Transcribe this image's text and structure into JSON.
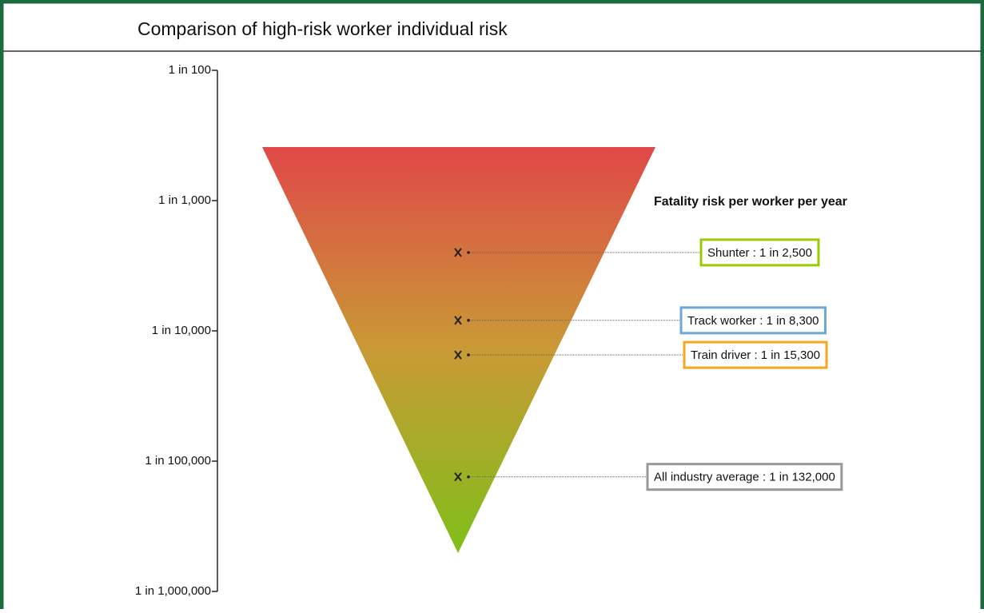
{
  "chart_data": {
    "type": "scatter",
    "title": "Comparison of high-risk worker individual risk",
    "annotation": "Fatality risk per worker per year",
    "log_y": true,
    "ylim": [
      1000000,
      100
    ],
    "yticks": [
      {
        "value": 100,
        "label": "1 in 100"
      },
      {
        "value": 1000,
        "label": "1 in 1,000"
      },
      {
        "value": 10000,
        "label": "1 in 10,000"
      },
      {
        "value": 100000,
        "label": "1 in 100,000"
      },
      {
        "value": 1000000,
        "label": "1 in 1,000,000"
      }
    ],
    "values": [
      2500,
      8300,
      15300,
      132000
    ],
    "value_labels": [
      "Shunter : 1 in 2,500",
      "Track worker : 1 in 8,300",
      "Train driver : 1 in 15,300",
      "All industry average : 1 in 132,000"
    ],
    "colors": [
      "#99cc00",
      "#6fa8d6",
      "#f5a623",
      "#999999"
    ],
    "marker_color": "#222222"
  }
}
